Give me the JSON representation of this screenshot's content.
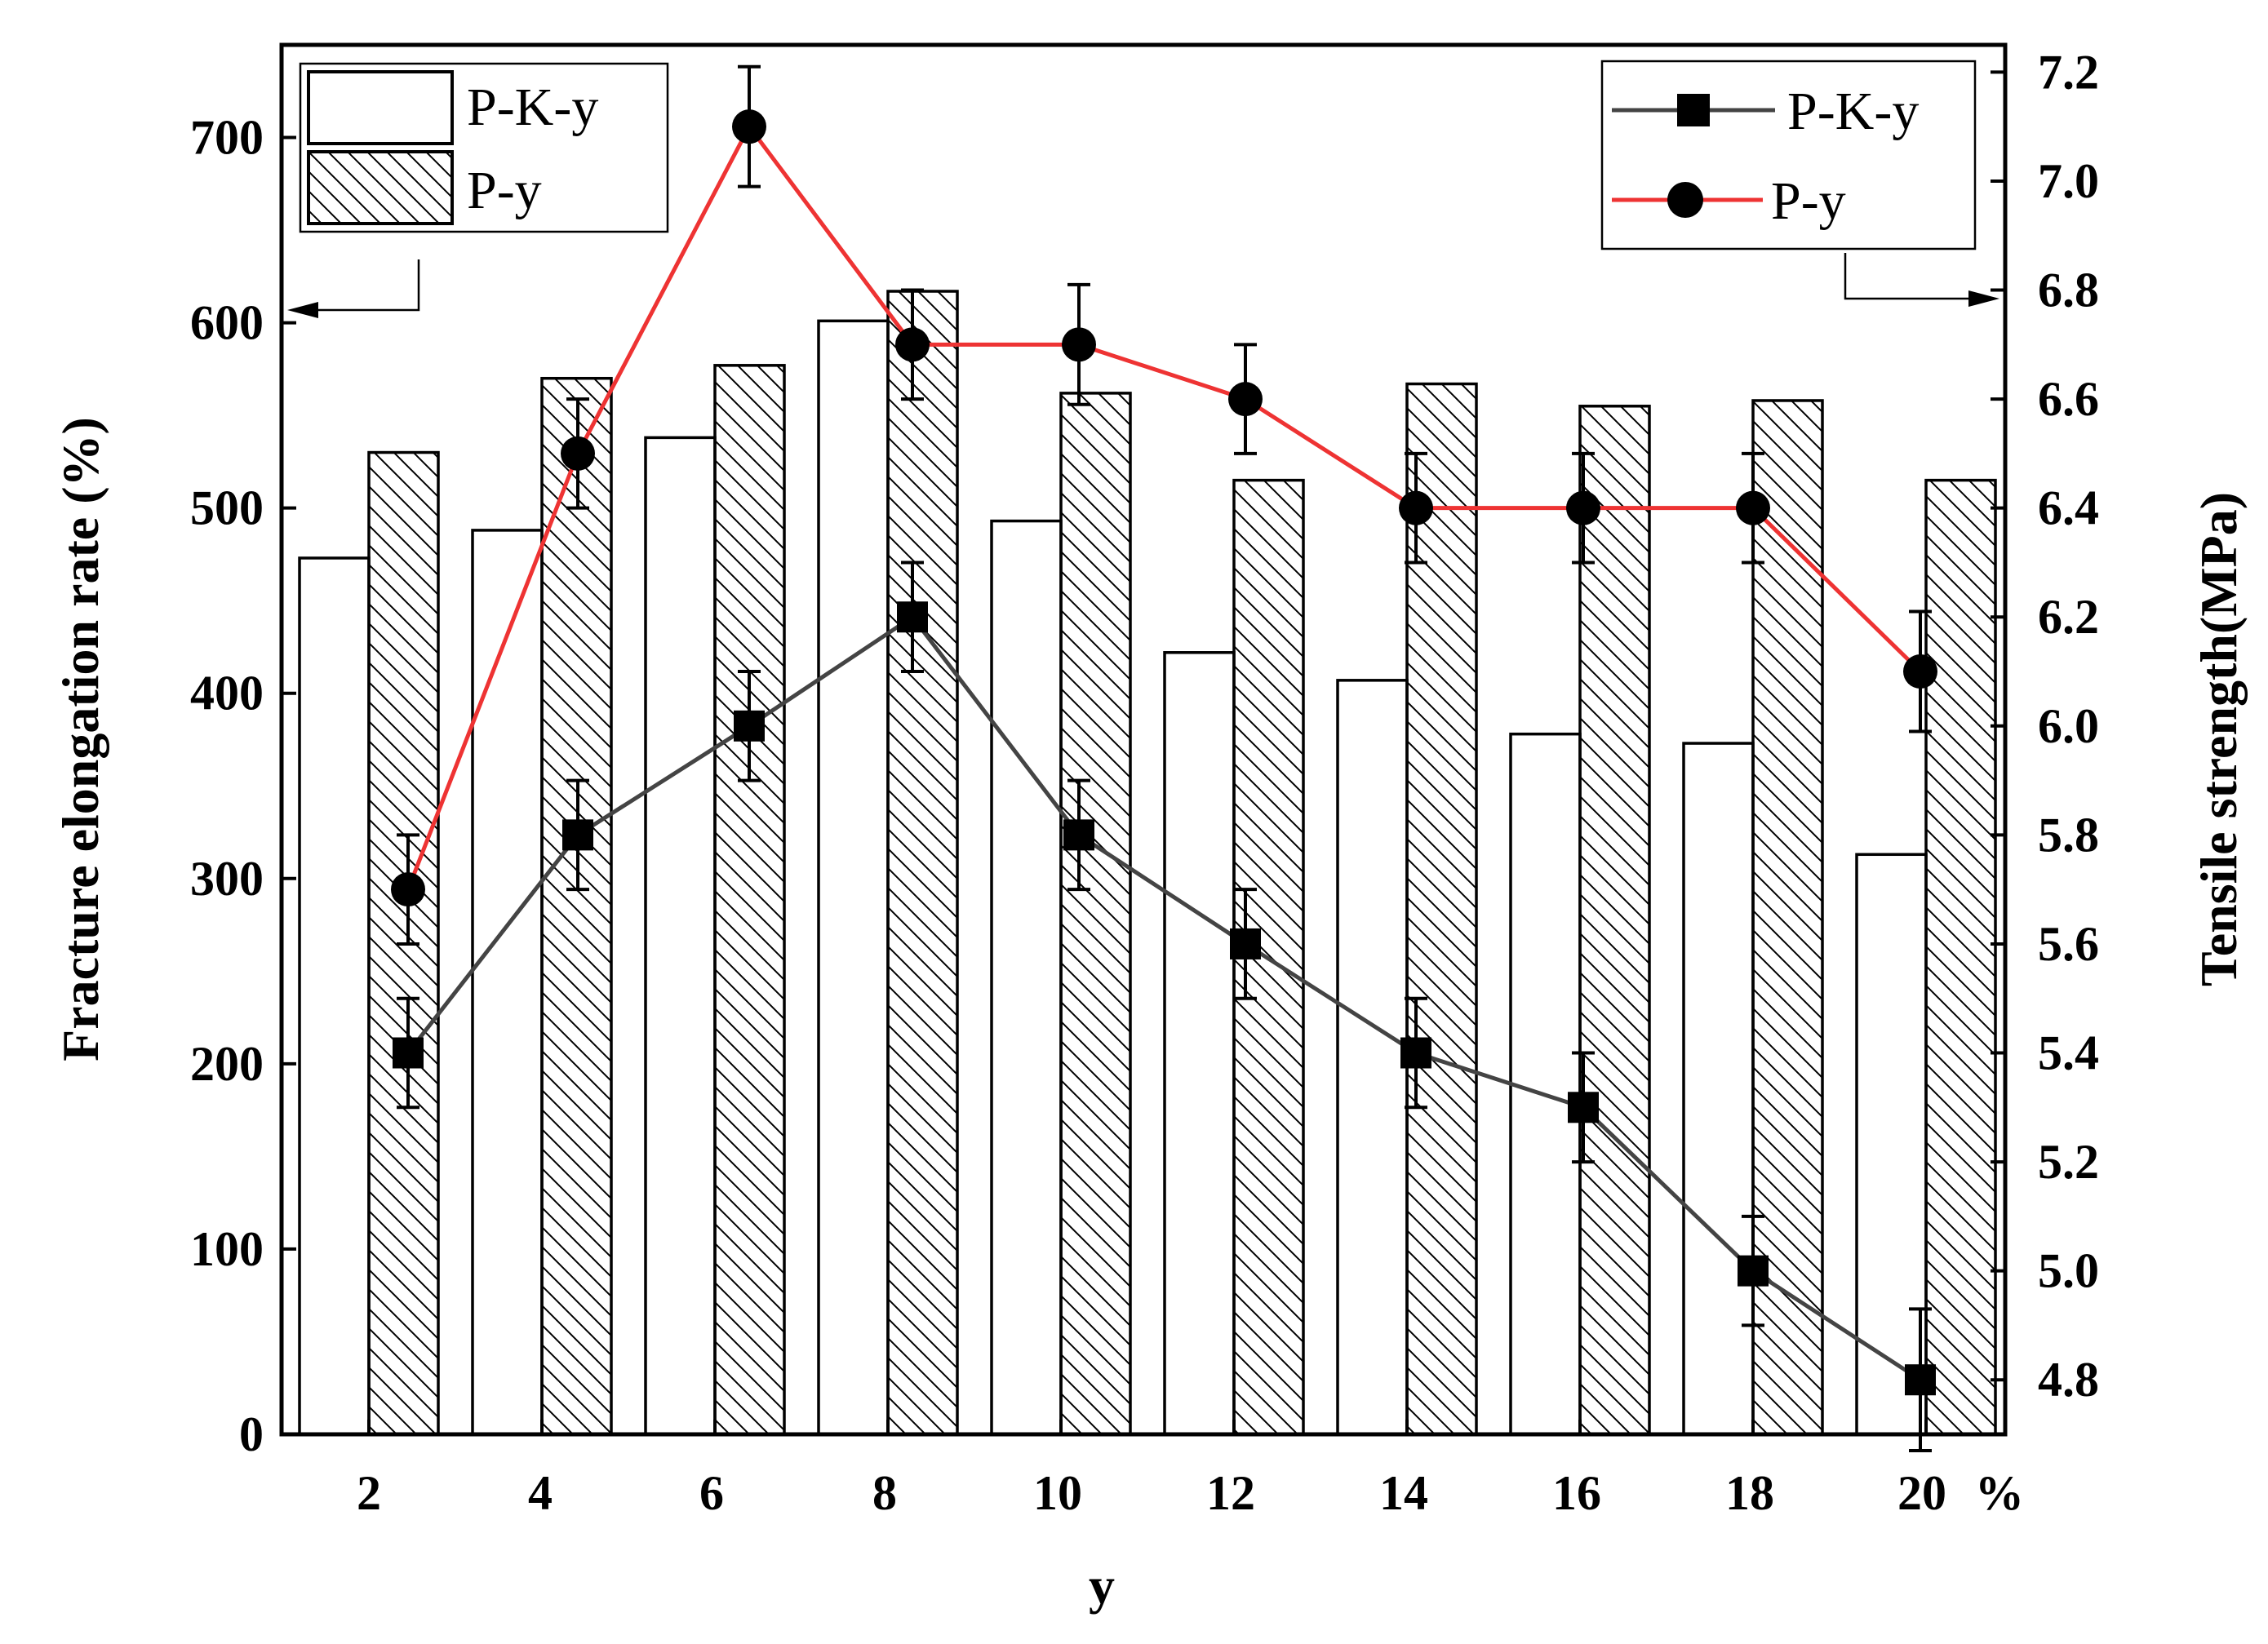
{
  "chart_data": {
    "type": "bar+line",
    "xlabel": "y",
    "x_unit_label": "%",
    "categories": [
      "2",
      "4",
      "6",
      "8",
      "10",
      "12",
      "14",
      "16",
      "18",
      "20"
    ],
    "left_axis": {
      "label": "Fracture elongation rate (%)",
      "ylim": [
        0,
        750
      ],
      "ticks": [
        0,
        100,
        200,
        300,
        400,
        500,
        600,
        700
      ]
    },
    "right_axis": {
      "label": "Tensile strength(MPa)",
      "ylim": [
        4.7,
        7.25
      ],
      "ticks": [
        4.8,
        5.0,
        5.2,
        5.4,
        5.6,
        5.8,
        6.0,
        6.2,
        6.4,
        6.6,
        6.8,
        7.0,
        7.2
      ]
    },
    "bar_series": [
      {
        "name": "P-K-y",
        "fill": "open",
        "values": [
          473,
          488,
          538,
          601,
          493,
          422,
          407,
          378,
          373,
          313
        ]
      },
      {
        "name": "P-y",
        "fill": "hatched",
        "values": [
          530,
          570,
          577,
          617,
          562,
          515,
          567,
          555,
          558,
          515
        ]
      }
    ],
    "line_series": [
      {
        "name": "P-K-y",
        "marker": "square",
        "color": "#444444",
        "values": [
          5.4,
          5.8,
          6.0,
          6.2,
          5.8,
          5.6,
          5.4,
          5.3,
          5.0,
          4.8
        ],
        "errors": [
          0.1,
          0.1,
          0.1,
          0.1,
          0.1,
          0.1,
          0.1,
          0.1,
          0.1,
          0.13
        ]
      },
      {
        "name": "P-y",
        "marker": "circle",
        "color": "#ee3333",
        "values": [
          5.7,
          6.5,
          7.1,
          6.7,
          6.7,
          6.6,
          6.4,
          6.4,
          6.4,
          6.1
        ],
        "errors": [
          0.1,
          0.1,
          0.11,
          0.1,
          0.11,
          0.1,
          0.1,
          0.1,
          0.1,
          0.11
        ]
      }
    ],
    "bar_legend_placement": "top-left",
    "line_legend_placement": "top-right",
    "grid": false
  }
}
